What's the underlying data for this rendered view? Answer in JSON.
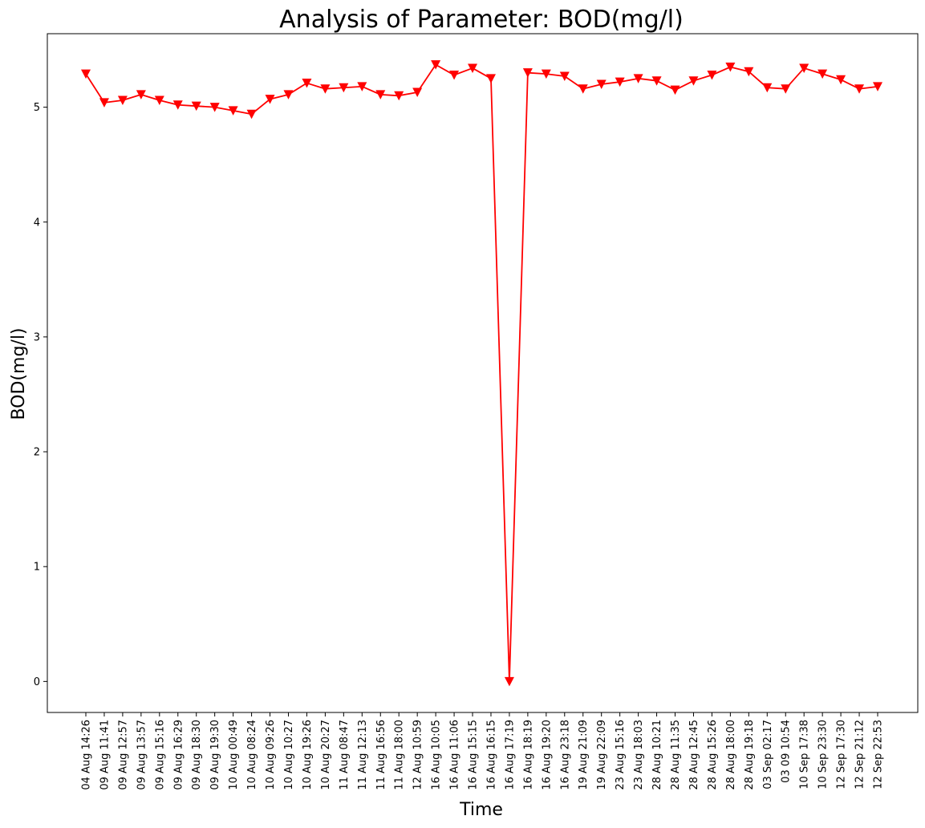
{
  "chart_data": {
    "type": "line",
    "title": "Analysis of Parameter: BOD(mg/l)",
    "xlabel": "Time",
    "ylabel": "BOD(mg/l)",
    "ylim": [
      -0.27,
      5.64
    ],
    "yticks": [
      0,
      1,
      2,
      3,
      4,
      5
    ],
    "grid": false,
    "legend": "none",
    "series": [
      {
        "color": "#ff0000",
        "marker": "triangle-down",
        "x": [
          "04 Aug 14:26",
          "09 Aug 11:41",
          "09 Aug 12:57",
          "09 Aug 13:57",
          "09 Aug 15:16",
          "09 Aug 16:29",
          "09 Aug 18:30",
          "09 Aug 19:30",
          "10 Aug 00:49",
          "10 Aug 08:24",
          "10 Aug 09:26",
          "10 Aug 10:27",
          "10 Aug 19:26",
          "10 Aug 20:27",
          "11 Aug 08:47",
          "11 Aug 12:13",
          "11 Aug 16:56",
          "11 Aug 18:00",
          "12 Aug 10:59",
          "16 Aug 10:05",
          "16 Aug 11:06",
          "16 Aug 15:15",
          "16 Aug 16:15",
          "16 Aug 17:19",
          "16 Aug 18:19",
          "16 Aug 19:20",
          "16 Aug 23:18",
          "19 Aug 21:09",
          "19 Aug 22:09",
          "23 Aug 15:16",
          "23 Aug 18:03",
          "28 Aug 10:21",
          "28 Aug 11:35",
          "28 Aug 12:45",
          "28 Aug 15:26",
          "28 Aug 18:00",
          "28 Aug 19:18",
          "03 Sep 02:17",
          "03 09 10:54",
          "10 Sep 17:38",
          "10 Sep 23:30",
          "12 Sep 17:30",
          "12 Sep 21:12",
          "12 Sep 22:53"
        ],
        "values": [
          5.29,
          5.04,
          5.06,
          5.11,
          5.06,
          5.02,
          5.01,
          5.0,
          4.97,
          4.94,
          5.07,
          5.11,
          5.21,
          5.16,
          5.17,
          5.18,
          5.11,
          5.1,
          5.13,
          5.37,
          5.28,
          5.34,
          5.25,
          0.0,
          5.3,
          5.29,
          5.27,
          5.16,
          5.2,
          5.22,
          5.25,
          5.23,
          5.15,
          5.23,
          5.28,
          5.35,
          5.31,
          5.17,
          5.16,
          5.34,
          5.29,
          5.24,
          5.16,
          5.18
        ]
      }
    ]
  }
}
